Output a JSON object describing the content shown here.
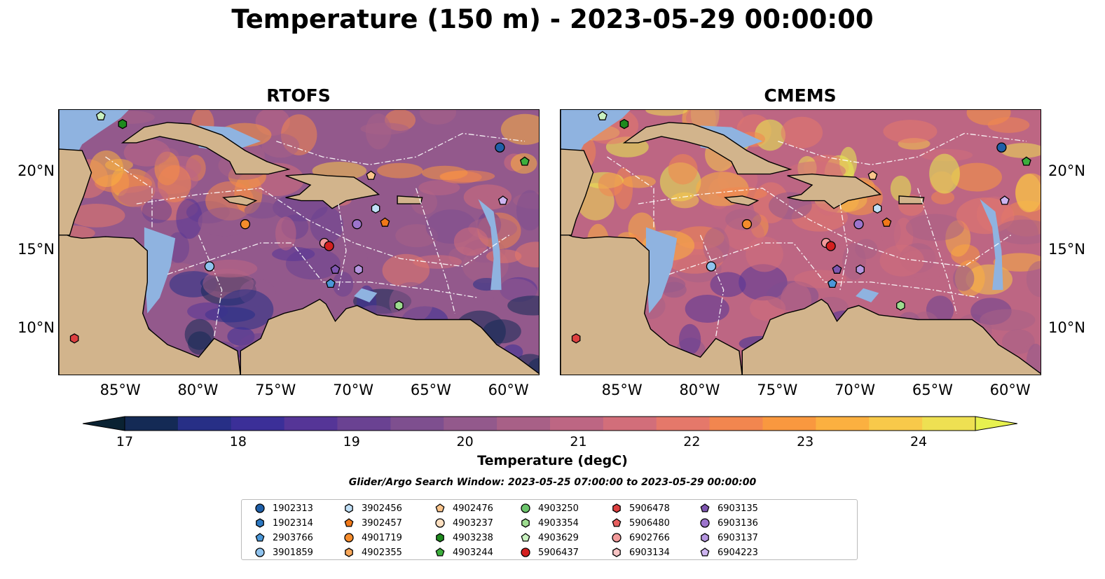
{
  "title": "Temperature (150 m) - 2023-05-29 00:00:00",
  "panels": [
    {
      "id": "rtofs",
      "title": "RTOFS"
    },
    {
      "id": "cmems",
      "title": "CMEMS"
    }
  ],
  "map": {
    "lon_range": [
      -89,
      -58
    ],
    "lat_range": [
      7,
      24
    ],
    "lon_ticks": [
      {
        "value": -85,
        "label": "85°W"
      },
      {
        "value": -80,
        "label": "80°W"
      },
      {
        "value": -75,
        "label": "75°W"
      },
      {
        "value": -70,
        "label": "70°W"
      },
      {
        "value": -65,
        "label": "65°W"
      },
      {
        "value": -60,
        "label": "60°W"
      }
    ],
    "lat_ticks": [
      {
        "value": 20,
        "label": "20°N"
      },
      {
        "value": 15,
        "label": "15°N"
      },
      {
        "value": 10,
        "label": "10°N"
      }
    ],
    "colors": {
      "land": "#d2b48c",
      "shelf": "#8fb3e0",
      "coast": "#000000"
    }
  },
  "colorbar": {
    "label": "Temperature (degC)",
    "min": 17,
    "max": 24.5,
    "ticks": [
      17,
      18,
      19,
      20,
      21,
      22,
      23,
      24
    ],
    "colors": [
      "#0a2232",
      "#142a55",
      "#272f86",
      "#3b2f98",
      "#553597",
      "#6a4292",
      "#7e4f8f",
      "#93598c",
      "#a86087",
      "#bd6683",
      "#d26e7a",
      "#e5786a",
      "#f2864f",
      "#f9983f",
      "#fbb040",
      "#f8c94a",
      "#eee052",
      "#e7f14f"
    ]
  },
  "search_window": "Glider/Argo Search Window: 2023-05-25 07:00:00 to 2023-05-29 00:00:00",
  "legend": [
    {
      "id": "1902313",
      "marker": "circle",
      "color": "#1f5fa8"
    },
    {
      "id": "1902314",
      "marker": "hexagon",
      "color": "#2c78c2"
    },
    {
      "id": "2903766",
      "marker": "pentagon",
      "color": "#4a97d8"
    },
    {
      "id": "3901859",
      "marker": "circle",
      "color": "#8fc3ee"
    },
    {
      "id": "3902456",
      "marker": "hexagon",
      "color": "#c1e0f7"
    },
    {
      "id": "3902457",
      "marker": "pentagon",
      "color": "#f07818"
    },
    {
      "id": "4901719",
      "marker": "circle",
      "color": "#f58c2c"
    },
    {
      "id": "4902355",
      "marker": "hexagon",
      "color": "#f9a85a"
    },
    {
      "id": "4902476",
      "marker": "pentagon",
      "color": "#fbc58c"
    },
    {
      "id": "4903237",
      "marker": "circle",
      "color": "#fddfc0"
    },
    {
      "id": "4903238",
      "marker": "hexagon",
      "color": "#1e8a1e"
    },
    {
      "id": "4903244",
      "marker": "pentagon",
      "color": "#3cae3c"
    },
    {
      "id": "4903250",
      "marker": "circle",
      "color": "#6cc56c"
    },
    {
      "id": "4903354",
      "marker": "hexagon",
      "color": "#9ddc8f"
    },
    {
      "id": "4903629",
      "marker": "pentagon",
      "color": "#c9f1c0"
    },
    {
      "id": "5906437",
      "marker": "circle",
      "color": "#d42020"
    },
    {
      "id": "5906478",
      "marker": "hexagon",
      "color": "#dd4040"
    },
    {
      "id": "5906480",
      "marker": "pentagon",
      "color": "#e86060"
    },
    {
      "id": "6902766",
      "marker": "circle",
      "color": "#f29a9a"
    },
    {
      "id": "6903134",
      "marker": "hexagon",
      "color": "#f8c4c4"
    },
    {
      "id": "6903135",
      "marker": "pentagon",
      "color": "#7e56b0"
    },
    {
      "id": "6903136",
      "marker": "circle",
      "color": "#9c74cc"
    },
    {
      "id": "6903137",
      "marker": "hexagon",
      "color": "#b596e0"
    },
    {
      "id": "6904223",
      "marker": "pentagon",
      "color": "#cdb4f0"
    }
  ],
  "float_positions": [
    {
      "id": "4903629",
      "lon": -86.3,
      "lat": 23.6
    },
    {
      "id": "4903238",
      "lon": -84.9,
      "lat": 23.1
    },
    {
      "id": "1902313",
      "lon": -60.6,
      "lat": 21.6
    },
    {
      "id": "4903244",
      "lon": -59.0,
      "lat": 20.7
    },
    {
      "id": "4902476",
      "lon": -68.9,
      "lat": 19.8
    },
    {
      "id": "6904223",
      "lon": -60.4,
      "lat": 18.2
    },
    {
      "id": "3902456",
      "lon": -68.6,
      "lat": 17.7
    },
    {
      "id": "4901719",
      "lon": -77.0,
      "lat": 16.7
    },
    {
      "id": "6903136",
      "lon": -69.8,
      "lat": 16.7
    },
    {
      "id": "3902457",
      "lon": -68.0,
      "lat": 16.8
    },
    {
      "id": "6902766",
      "lon": -71.9,
      "lat": 15.5
    },
    {
      "id": "5906437",
      "lon": -71.6,
      "lat": 15.3
    },
    {
      "id": "3901859",
      "lon": -79.3,
      "lat": 14.0
    },
    {
      "id": "6903135",
      "lon": -71.2,
      "lat": 13.8
    },
    {
      "id": "6903137",
      "lon": -69.7,
      "lat": 13.8
    },
    {
      "id": "2903766",
      "lon": -71.5,
      "lat": 12.9
    },
    {
      "id": "4903354",
      "lon": -67.1,
      "lat": 11.5
    },
    {
      "id": "5906478",
      "lon": -88.0,
      "lat": 9.4
    }
  ]
}
